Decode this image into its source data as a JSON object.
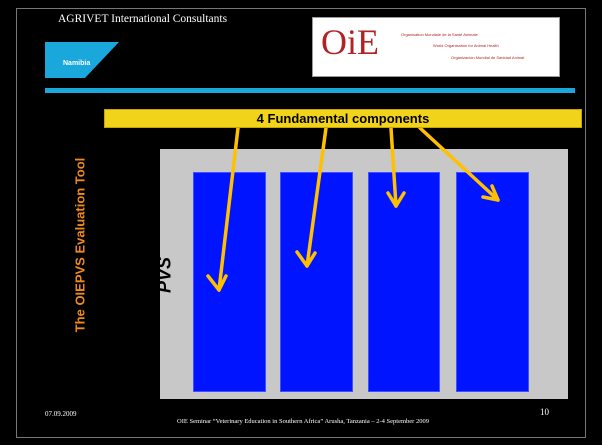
{
  "header": {
    "org_name": "AGRIVET International Consultants",
    "namibia_label": "Namibia",
    "oie_logo": "OiE",
    "oie_fr": "Organisation Mondiale de la Santé Animale",
    "oie_en": "World Organisation for Animal Health",
    "oie_es": "Organización Mundial de Sanidad Animal"
  },
  "sidebar": {
    "title": "The OIEPVS Evaluation Tool"
  },
  "main": {
    "banner": "4 Fundamental components",
    "pvs_label": "PVS",
    "columns": [
      {
        "name": "component-1"
      },
      {
        "name": "component-2"
      },
      {
        "name": "component-3"
      },
      {
        "name": "component-4"
      }
    ]
  },
  "footer": {
    "date": "07.09.2009",
    "seminar": "OIE Seminar “Veterinary Education in Southern Africa”  Arusha, Tanzania – 2-4 September 2009",
    "page": "10"
  },
  "colors": {
    "background": "#000000",
    "accent_blue": "#1aa7dc",
    "title_orange": "#f08a1c",
    "banner_yellow": "#f2d31b",
    "component_blue": "#0014ff",
    "panel_grey": "#c8c8c8",
    "arrow": "#ffc000"
  }
}
